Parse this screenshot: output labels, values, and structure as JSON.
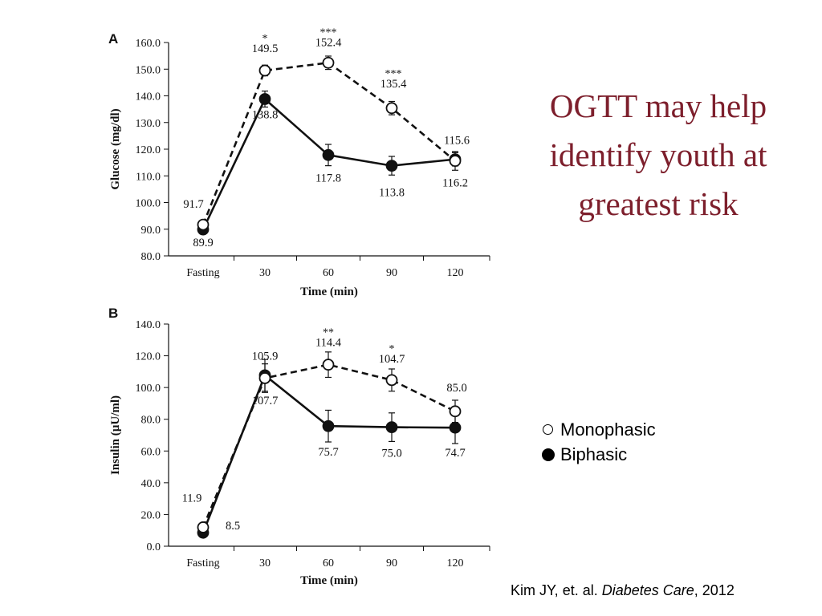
{
  "slide": {
    "title": "OGTT may help identify youth at greatest risk",
    "citation": {
      "authors": "Kim JY, et. al.",
      "journal": "Diabetes Care",
      "year_suffix": ", 2012"
    },
    "legend": [
      {
        "label": "Monophasic",
        "marker": "open-circle"
      },
      {
        "label": "Biphasic",
        "marker": "filled-circle"
      }
    ]
  },
  "chart_data": [
    {
      "panel": "A",
      "type": "line",
      "categories": [
        "Fasting",
        "30",
        "60",
        "90",
        "120"
      ],
      "xlabel": "Time (min)",
      "ylabel": "Glucose (mg/dl)",
      "ylim": [
        80.0,
        160.0
      ],
      "yticks": [
        "80.0",
        "90.0",
        "100.0",
        "110.0",
        "120.0",
        "130.0",
        "140.0",
        "150.0",
        "160.0"
      ],
      "grid": false,
      "series": [
        {
          "group": "Monophasic",
          "marker": "open-circle",
          "line_style": "dashed",
          "values": [
            91.7,
            149.5,
            152.4,
            135.4,
            115.6
          ],
          "labels": [
            "91.7",
            "149.5",
            "152.4",
            "135.4",
            "115.6"
          ],
          "errors": [
            1.5,
            2.0,
            2.5,
            2.5,
            3.5
          ]
        },
        {
          "group": "Biphasic",
          "marker": "filled-circle",
          "line_style": "solid",
          "values": [
            89.9,
            138.8,
            117.8,
            113.8,
            116.2
          ],
          "labels": [
            "89.9",
            "138.8",
            "117.8",
            "113.8",
            "116.2"
          ],
          "errors": [
            1.5,
            3.0,
            4.0,
            3.5,
            2.5
          ]
        }
      ],
      "significance": [
        "",
        "*",
        "***",
        "***",
        ""
      ]
    },
    {
      "panel": "B",
      "type": "line",
      "categories": [
        "Fasting",
        "30",
        "60",
        "90",
        "120"
      ],
      "xlabel": "Time (min)",
      "ylabel": "Insulin (µU/ml)",
      "ylim": [
        0.0,
        140.0
      ],
      "yticks": [
        "0.0",
        "20.0",
        "40.0",
        "60.0",
        "80.0",
        "100.0",
        "120.0",
        "140.0"
      ],
      "grid": false,
      "series": [
        {
          "group": "Monophasic",
          "marker": "open-circle",
          "line_style": "dashed",
          "values": [
            11.9,
            105.9,
            114.4,
            104.7,
            85.0
          ],
          "labels": [
            "11.9",
            "105.9",
            "114.4",
            "104.7",
            "85.0"
          ],
          "errors": [
            1.5,
            9.0,
            8.0,
            7.0,
            7.0
          ]
        },
        {
          "group": "Biphasic",
          "marker": "filled-circle",
          "line_style": "solid",
          "values": [
            8.5,
            107.7,
            75.7,
            75.0,
            74.7
          ],
          "labels": [
            "8.5",
            "107.7",
            "75.7",
            "75.0",
            "74.7"
          ],
          "errors": [
            1.5,
            10.0,
            10.0,
            9.0,
            10.0
          ]
        }
      ],
      "significance": [
        "",
        "",
        "**",
        "*",
        ""
      ]
    }
  ]
}
